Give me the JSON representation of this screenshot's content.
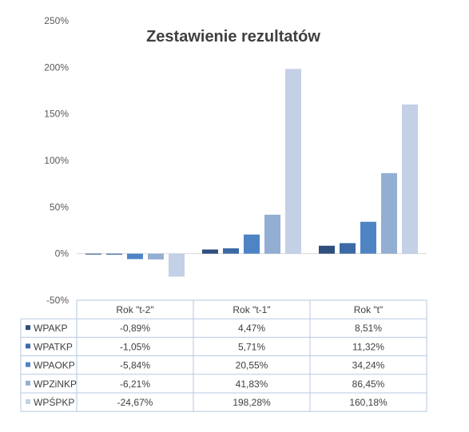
{
  "chart_data": {
    "type": "bar",
    "title": "Zestawienie rezultatów",
    "categories": [
      "Rok \"t-2\"",
      "Rok \"t-1\"",
      "Rok \"t\""
    ],
    "ylim": [
      -50,
      250
    ],
    "yticks": [
      "-50%",
      "0%",
      "50%",
      "100%",
      "150%",
      "200%",
      "250%"
    ],
    "grid": false,
    "legend": "data-table",
    "series": [
      {
        "name": "WPAKP",
        "color": "#2f4f7f",
        "values": [
          -0.89,
          4.47,
          8.51
        ],
        "labels": [
          "-0,89%",
          "4,47%",
          "8,51%"
        ]
      },
      {
        "name": "WPATKP",
        "color": "#3c6aa6",
        "values": [
          -1.05,
          5.71,
          11.32
        ],
        "labels": [
          "-1,05%",
          "5,71%",
          "11,32%"
        ]
      },
      {
        "name": "WPAOKP",
        "color": "#4e84c4",
        "values": [
          -5.84,
          20.55,
          34.24
        ],
        "labels": [
          "-5,84%",
          "20,55%",
          "34,24%"
        ]
      },
      {
        "name": "WPZiNKP",
        "color": "#93aed3",
        "values": [
          -6.21,
          41.83,
          86.45
        ],
        "labels": [
          "-6,21%",
          "41,83%",
          "86,45%"
        ]
      },
      {
        "name": "WPŚPKP",
        "color": "#c3d0e6",
        "values": [
          -24.67,
          198.28,
          160.18
        ],
        "labels": [
          "-24,67%",
          "198,28%",
          "160,18%"
        ]
      }
    ]
  }
}
